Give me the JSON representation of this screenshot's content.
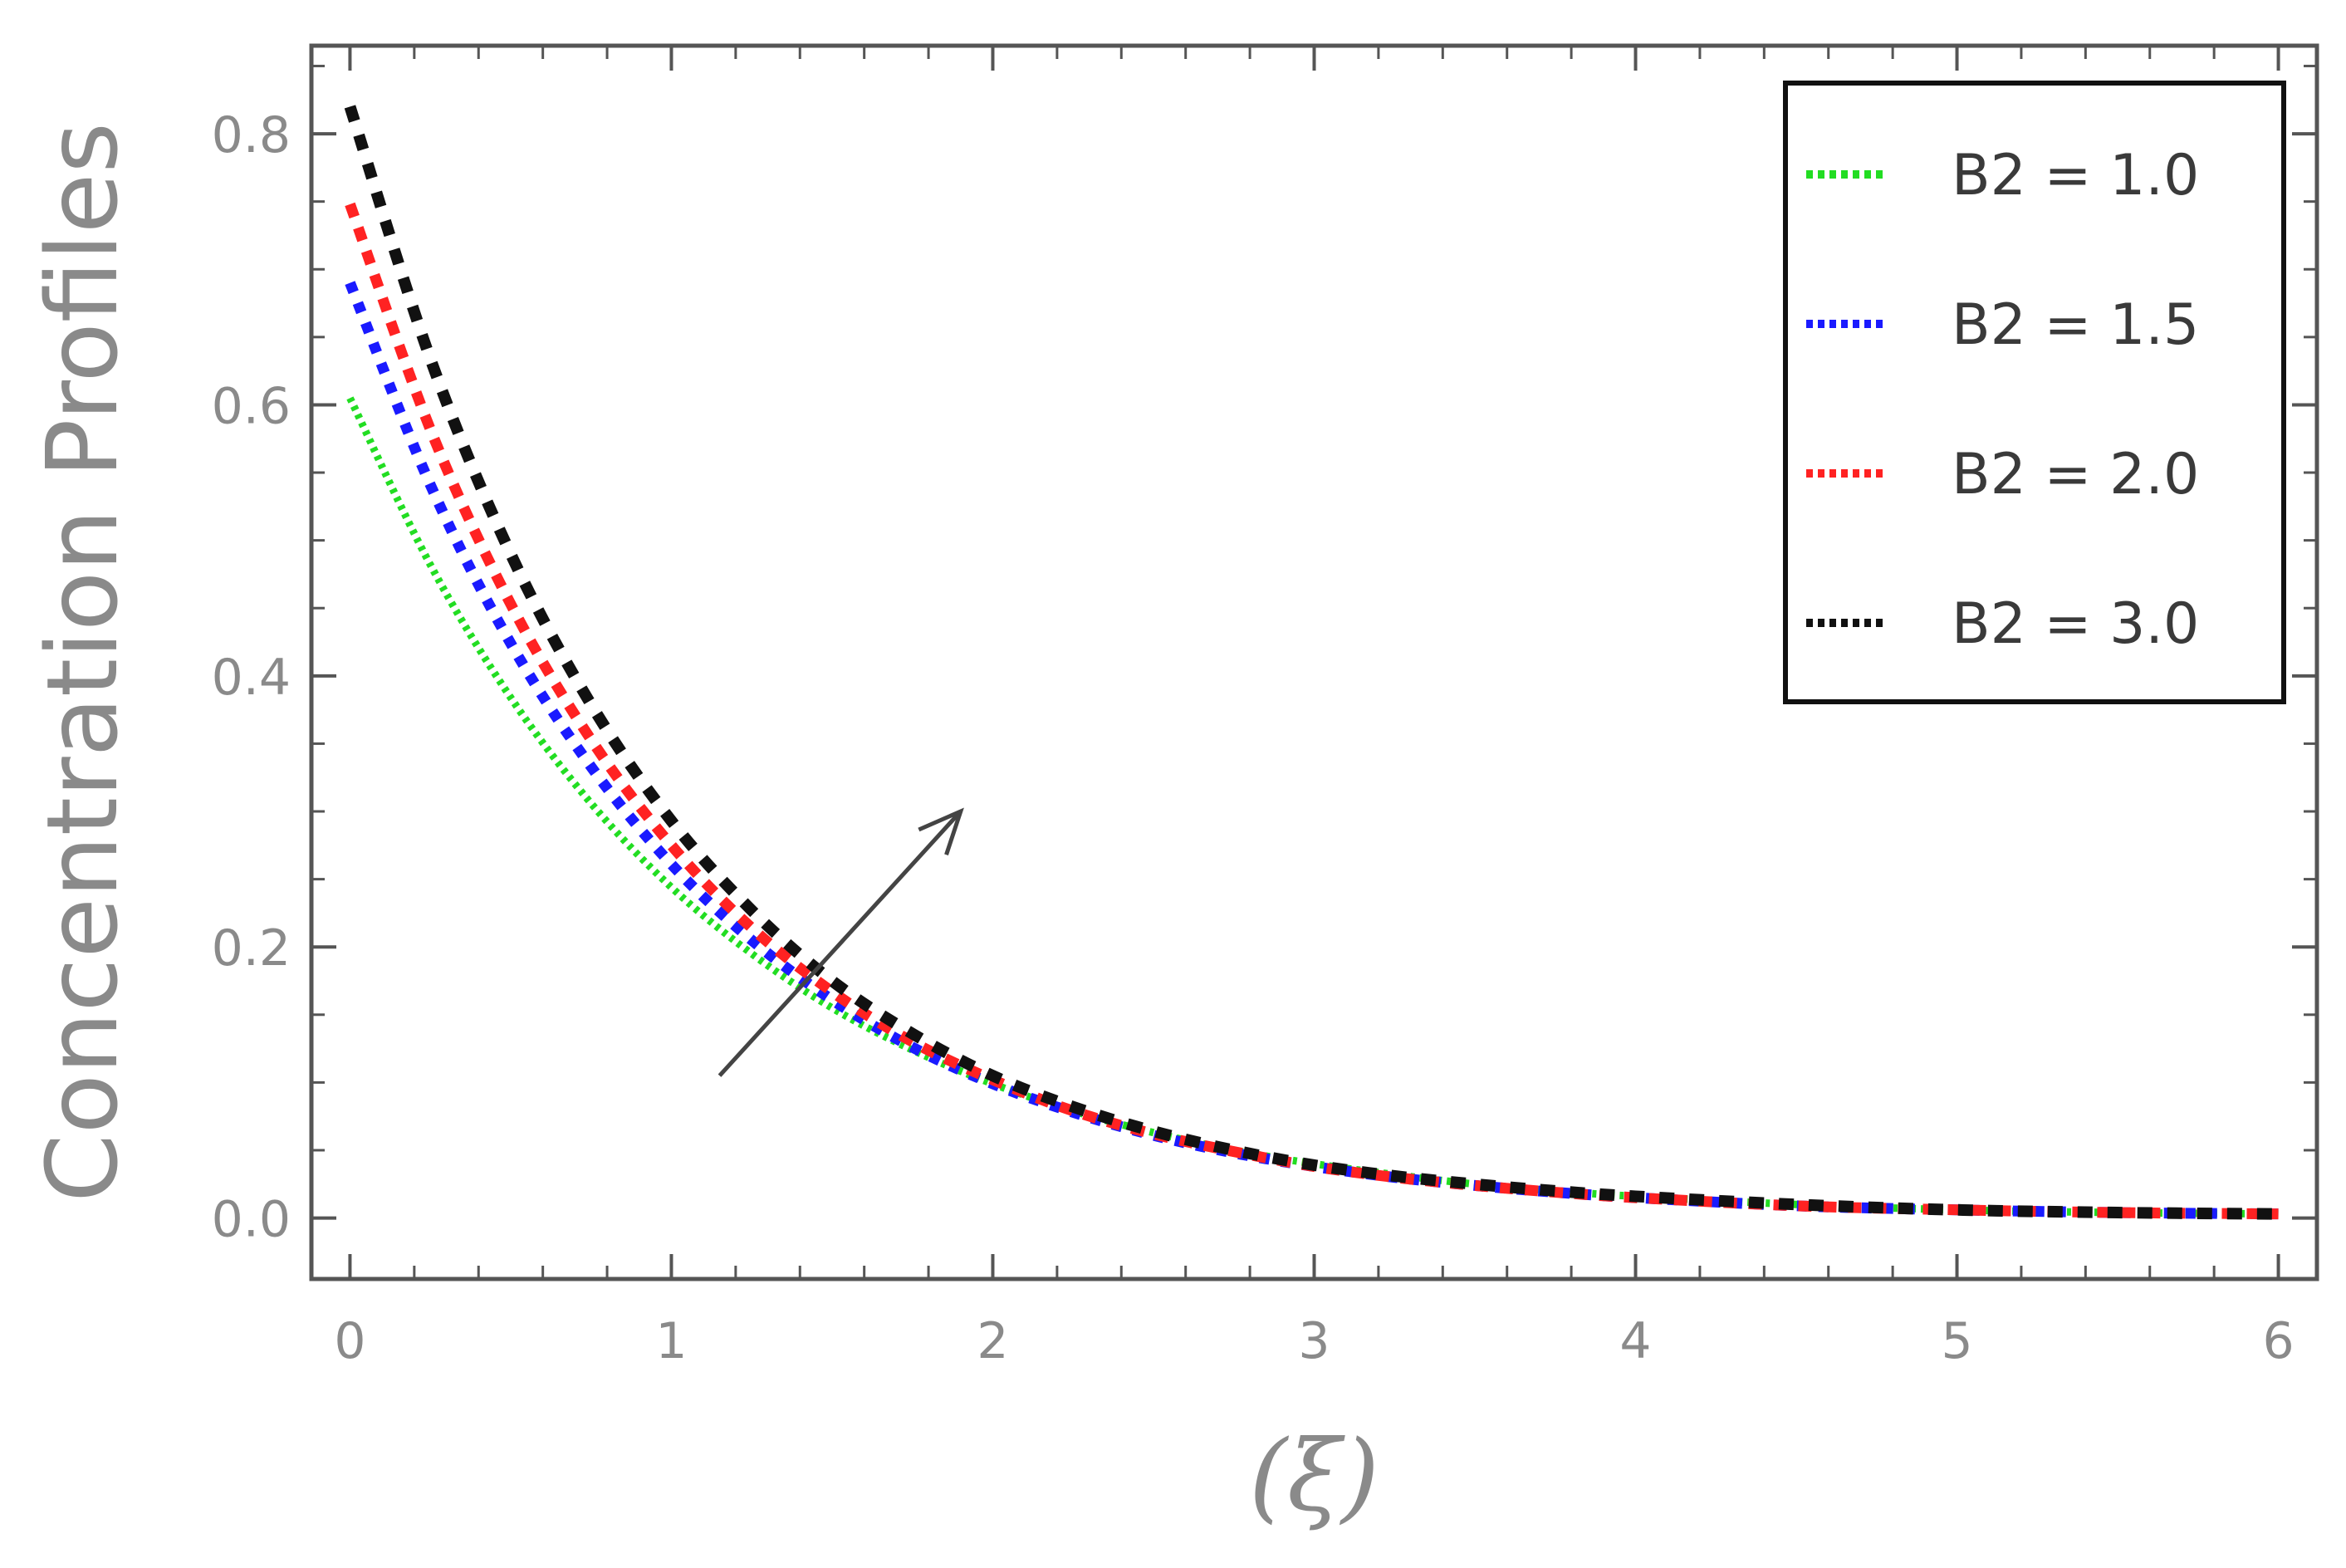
{
  "chart_data": {
    "type": "line",
    "title": "",
    "xlabel": "(ξ)",
    "ylabel": "Concentration Profiles",
    "xlim": [
      -0.12,
      6.12
    ],
    "ylim": [
      -0.045,
      0.865
    ],
    "xticks": [
      0,
      1,
      2,
      3,
      4,
      5,
      6
    ],
    "xtick_labels": [
      "0",
      "1",
      "2",
      "3",
      "4",
      "5",
      "6"
    ],
    "yticks": [
      0.0,
      0.2,
      0.4,
      0.6,
      0.8
    ],
    "ytick_labels": [
      "0.0",
      "0.2",
      "0.4",
      "0.6",
      "0.8"
    ],
    "grid": false,
    "legend_position": "top-right",
    "x": [
      0,
      0.25,
      0.5,
      0.75,
      1.0,
      1.25,
      1.5,
      1.75,
      2.0,
      2.25,
      2.5,
      2.75,
      3.0,
      3.25,
      3.5,
      3.75,
      4.0,
      4.5,
      5.0,
      5.5,
      6.0
    ],
    "series": [
      {
        "name": "B2 = 1.0",
        "color": "#22dd22",
        "values": [
          0.605,
          0.482,
          0.384,
          0.306,
          0.244,
          0.195,
          0.155,
          0.124,
          0.099,
          0.079,
          0.063,
          0.05,
          0.04,
          0.032,
          0.025,
          0.02,
          0.016,
          0.01,
          0.006,
          0.004,
          0.003
        ]
      },
      {
        "name": "B2 = 1.5",
        "color": "#1a1aff",
        "values": [
          0.69,
          0.541,
          0.424,
          0.333,
          0.261,
          0.205,
          0.161,
          0.126,
          0.099,
          0.078,
          0.061,
          0.048,
          0.038,
          0.03,
          0.024,
          0.019,
          0.015,
          0.009,
          0.006,
          0.004,
          0.003
        ]
      },
      {
        "name": "B2 = 2.0",
        "color": "#ff2222",
        "values": [
          0.748,
          0.582,
          0.453,
          0.353,
          0.275,
          0.214,
          0.167,
          0.13,
          0.102,
          0.079,
          0.062,
          0.049,
          0.038,
          0.03,
          0.024,
          0.019,
          0.015,
          0.009,
          0.006,
          0.004,
          0.003
        ]
      },
      {
        "name": "B2 = 3.0",
        "color": "#111111",
        "values": [
          0.82,
          0.634,
          0.49,
          0.379,
          0.293,
          0.227,
          0.175,
          0.136,
          0.105,
          0.082,
          0.064,
          0.05,
          0.039,
          0.031,
          0.025,
          0.02,
          0.016,
          0.01,
          0.006,
          0.004,
          0.003
        ]
      }
    ],
    "annotations": [
      {
        "type": "arrow",
        "from": [
          1.15,
          0.105
        ],
        "to": [
          1.9,
          0.3
        ],
        "color": "#444444"
      }
    ]
  }
}
